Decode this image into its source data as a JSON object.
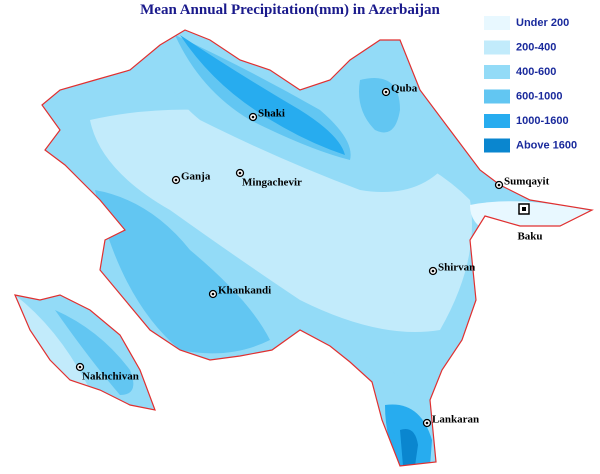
{
  "title": "Mean Annual Precipitation(mm) in Azerbaijan",
  "legend": [
    {
      "label": "Under 200",
      "color": "#e8f8ff"
    },
    {
      "label": "200-400",
      "color": "#c2ebfb"
    },
    {
      "label": "400-600",
      "color": "#93dbf7"
    },
    {
      "label": "600-1000",
      "color": "#62c6f2"
    },
    {
      "label": "1000-1600",
      "color": "#27acef"
    },
    {
      "label": "Above 1600",
      "color": "#0a86cf"
    }
  ],
  "cities": [
    "Quba",
    "Shaki",
    "Ganja",
    "Mingachevir",
    "Sumqayit",
    "Baku",
    "Shirvan",
    "Khankandi",
    "Nakhchivan",
    "Lankaran"
  ]
}
